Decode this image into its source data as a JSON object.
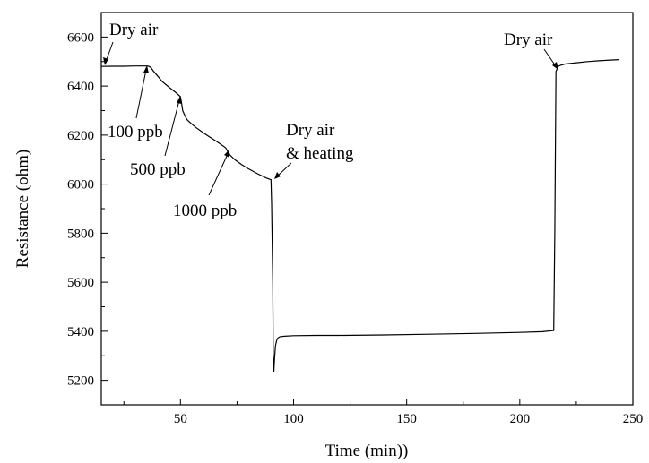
{
  "chart_data": {
    "type": "line",
    "title": "",
    "xlabel": "Time (min))",
    "ylabel": "Resistance (ohm)",
    "xlim": [
      15,
      250
    ],
    "ylim": [
      5100,
      6700
    ],
    "xticks": [
      50,
      100,
      150,
      200,
      250
    ],
    "xtick_labels": [
      "50",
      "100",
      "150",
      "200",
      "250"
    ],
    "yticks": [
      5200,
      5400,
      5600,
      5800,
      6000,
      6200,
      6400,
      6600
    ],
    "ytick_labels": [
      "5200",
      "5400",
      "5600",
      "5800",
      "6000",
      "6200",
      "6400",
      "6600"
    ],
    "grid": false,
    "legend": "none",
    "line_color": "#000000",
    "series": [
      {
        "x": [
          15,
          20,
          25,
          30,
          33,
          35,
          36,
          37,
          38,
          40,
          42,
          45,
          48,
          50,
          50.5,
          51,
          52,
          53,
          55,
          57,
          60,
          63,
          66,
          69,
          70,
          71,
          72,
          74,
          77,
          80,
          84,
          88,
          90,
          90.3,
          90.8,
          91,
          91.3,
          91.6,
          92,
          92.5,
          93,
          94,
          96,
          100,
          110,
          120,
          140,
          160,
          180,
          200,
          210,
          215,
          215.5,
          216,
          217,
          218,
          220,
          225,
          230,
          235,
          240,
          244
        ],
        "y": [
          6480,
          6481,
          6481,
          6482,
          6482,
          6482,
          6481,
          6475,
          6462,
          6440,
          6418,
          6395,
          6373,
          6357,
          6330,
          6300,
          6278,
          6262,
          6245,
          6230,
          6210,
          6192,
          6174,
          6155,
          6148,
          6132,
          6118,
          6100,
          6080,
          6063,
          6043,
          6025,
          6018,
          5920,
          5600,
          5310,
          5235,
          5290,
          5340,
          5362,
          5372,
          5378,
          5380,
          5382,
          5383,
          5383,
          5385,
          5388,
          5391,
          5395,
          5398,
          5403,
          5800,
          6460,
          6480,
          6485,
          6490,
          6495,
          6500,
          6503,
          6506,
          6508
        ]
      }
    ],
    "annotations": [
      {
        "text": "Dry air",
        "x": 16,
        "y": 6480
      },
      {
        "text": "100 ppb",
        "x": 36,
        "y": 6482
      },
      {
        "text": "500 ppb",
        "x": 50,
        "y": 6357
      },
      {
        "text": "1000 ppb",
        "x": 70,
        "y": 6148
      },
      {
        "text": "Dry air",
        "x": 90,
        "y": 6018
      },
      {
        "text": "& heating",
        "x": 90,
        "y": 6018
      },
      {
        "text": "Dry air",
        "x": 216,
        "y": 6465
      }
    ]
  }
}
